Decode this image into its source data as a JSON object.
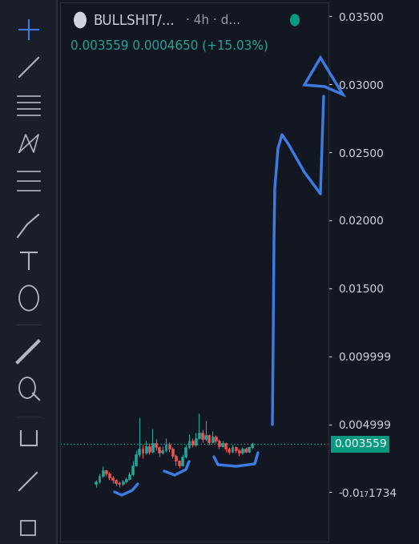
{
  "chart_data": {
    "type": "candlestick",
    "title": "BULLSHIT/...",
    "interval": "· 4h · d...",
    "subtitle": "0.003559 0.0004650 (+15.03%)",
    "categories": [
      null,
      null,
      null,
      null,
      null,
      null,
      null,
      null,
      null,
      null,
      null,
      null,
      null,
      null,
      null,
      null,
      null,
      null,
      null,
      null,
      null,
      null,
      null,
      null,
      null,
      null,
      null,
      null,
      null,
      null,
      null,
      null,
      null,
      null,
      null,
      null,
      null,
      null,
      null,
      null,
      null,
      null,
      null,
      null,
      null,
      null,
      null,
      null
    ],
    "open": [
      0.0006,
      0.0008,
      0.0012,
      0.0016,
      0.0014,
      0.0011,
      0.0009,
      0.0007,
      0.0006,
      0.0008,
      0.001,
      0.0013,
      0.002,
      0.0028,
      0.0032,
      0.0029,
      0.0034,
      0.003,
      0.0036,
      0.0033,
      0.0029,
      0.0031,
      0.0035,
      0.0032,
      0.0027,
      0.0023,
      0.002,
      0.0026,
      0.0033,
      0.0038,
      0.0035,
      0.004,
      0.0044,
      0.0039,
      0.0042,
      0.0037,
      0.0041,
      0.0038,
      0.0034,
      0.0036,
      0.0032,
      0.003,
      0.0033,
      0.0031,
      0.0029,
      0.0032,
      0.003,
      0.0033
    ],
    "high": [
      0.0009,
      0.0014,
      0.0019,
      0.0017,
      0.0015,
      0.0012,
      0.001,
      0.0008,
      0.0009,
      0.0011,
      0.0015,
      0.0023,
      0.0031,
      0.0055,
      0.0035,
      0.0038,
      0.0036,
      0.0047,
      0.0039,
      0.0034,
      0.0034,
      0.004,
      0.0037,
      0.0033,
      0.0028,
      0.0024,
      0.0028,
      0.0035,
      0.0043,
      0.004,
      0.0044,
      0.0058,
      0.0046,
      0.0053,
      0.0043,
      0.0045,
      0.0042,
      0.0039,
      0.0038,
      0.0037,
      0.0033,
      0.0035,
      0.0034,
      0.0032,
      0.0033,
      0.0033,
      0.0034,
      0.0037
    ],
    "low": [
      0.0004,
      0.0007,
      0.0011,
      0.0012,
      0.0009,
      0.0007,
      0.0005,
      0.0004,
      0.0005,
      0.0007,
      0.0009,
      0.0012,
      0.0019,
      0.0026,
      0.0025,
      0.0028,
      0.0028,
      0.0029,
      0.0031,
      0.0026,
      0.0028,
      0.003,
      0.003,
      0.0025,
      0.002,
      0.0018,
      0.0019,
      0.0025,
      0.0032,
      0.0033,
      0.0034,
      0.0039,
      0.0037,
      0.0038,
      0.0035,
      0.0036,
      0.0036,
      0.0032,
      0.0033,
      0.003,
      0.0028,
      0.0029,
      0.0029,
      0.0027,
      0.0028,
      0.0029,
      0.0029,
      0.0032
    ],
    "close": [
      0.0008,
      0.0012,
      0.0016,
      0.0014,
      0.0011,
      0.0009,
      0.0007,
      0.0006,
      0.0008,
      0.001,
      0.0013,
      0.002,
      0.0028,
      0.0032,
      0.0029,
      0.0034,
      0.003,
      0.0036,
      0.0033,
      0.0029,
      0.0031,
      0.0035,
      0.0032,
      0.0027,
      0.0023,
      0.002,
      0.0026,
      0.0033,
      0.0038,
      0.0035,
      0.004,
      0.0044,
      0.0039,
      0.0042,
      0.0037,
      0.0041,
      0.0038,
      0.0034,
      0.0036,
      0.0032,
      0.003,
      0.0033,
      0.0031,
      0.0029,
      0.0032,
      0.003,
      0.0033,
      0.003559
    ],
    "ylim": [
      -0.0036,
      0.036
    ],
    "yticks": [
      {
        "value": 0.035,
        "label": "0.03500"
      },
      {
        "value": 0.03,
        "label": "0.03000"
      },
      {
        "value": 0.025,
        "label": "0.02500"
      },
      {
        "value": 0.02,
        "label": "0.02000"
      },
      {
        "value": 0.015,
        "label": "0.01500"
      },
      0.009999,
      0.004999,
      {
        "value": -1.734e-17,
        "label": "-0.0₁₇1734"
      }
    ],
    "price_line": {
      "value": 0.003559,
      "label": "0.003559"
    },
    "tick_labels": "y",
    "grid": false
  }
}
